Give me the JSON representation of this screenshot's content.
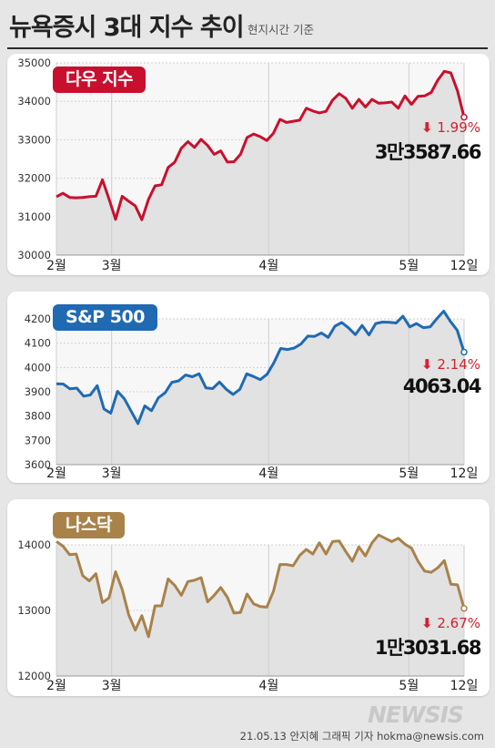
{
  "page": {
    "title": "뉴욕증시 3대 지수 추이",
    "subtitle": "현지시간 기준"
  },
  "footer": {
    "credit": "21.05.13 안지혜 그래픽 기자 hokma@newsis.com",
    "logo_text": "NEWSIS"
  },
  "chart_data": [
    {
      "type": "area",
      "title": "다우 지수",
      "color": "#c8102e",
      "badge_color": "#c8102e",
      "ylim": [
        30000,
        35000
      ],
      "yticks": [
        30000,
        31000,
        32000,
        33000,
        34000,
        35000
      ],
      "xticks": [
        {
          "label": "2월",
          "index": 0
        },
        {
          "label": "3월",
          "index": 13
        },
        {
          "label": "4월",
          "index": 50
        },
        {
          "label": "5월",
          "index": 83
        },
        {
          "label": "12일",
          "index": 96
        }
      ],
      "values": [
        31520,
        31610,
        31500,
        31490,
        31500,
        31520,
        31530,
        31960,
        31460,
        30930,
        31530,
        31400,
        31280,
        30920,
        31450,
        31800,
        31830,
        32280,
        32420,
        32780,
        32950,
        32800,
        33010,
        32850,
        32620,
        32710,
        32420,
        32430,
        32620,
        33060,
        33150,
        33080,
        32980,
        33170,
        33530,
        33450,
        33480,
        33510,
        33820,
        33750,
        33700,
        33740,
        34030,
        34200,
        34080,
        33820,
        34050,
        33850,
        34050,
        33950,
        33960,
        33980,
        33820,
        34140,
        33920,
        34130,
        34140,
        34230,
        34550,
        34780,
        34740,
        34270,
        33587.66
      ],
      "change": {
        "arrow": "⬇",
        "text": "1.99%"
      },
      "close_label": "3만3587.66"
    },
    {
      "type": "area",
      "title": "S&P 500",
      "color": "#1f6ab3",
      "badge_color": "#1f6ab3",
      "ylim": [
        3600,
        4200
      ],
      "yticks": [
        3600,
        3700,
        3800,
        3900,
        4000,
        4100,
        4200
      ],
      "xticks": [
        {
          "label": "2월",
          "index": 0
        },
        {
          "label": "3월",
          "index": 13
        },
        {
          "label": "4월",
          "index": 50
        },
        {
          "label": "5월",
          "index": 83
        },
        {
          "label": "12일",
          "index": 96
        }
      ],
      "values": [
        3933,
        3932,
        3912,
        3915,
        3882,
        3887,
        3925,
        3829,
        3812,
        3902,
        3871,
        3820,
        3769,
        3842,
        3822,
        3875,
        3896,
        3939,
        3945,
        3969,
        3962,
        3974,
        3916,
        3913,
        3940,
        3910,
        3889,
        3910,
        3974,
        3963,
        3950,
        3972,
        4019,
        4078,
        4074,
        4080,
        4097,
        4129,
        4128,
        4142,
        4124,
        4170,
        4185,
        4163,
        4135,
        4173,
        4134,
        4181,
        4187,
        4186,
        4183,
        4211,
        4167,
        4181,
        4164,
        4167,
        4201,
        4232,
        4189,
        4153,
        4063.04
      ],
      "change": {
        "arrow": "⬇",
        "text": "2.14%"
      },
      "close_label": "4063.04"
    },
    {
      "type": "area",
      "title": "나스닥",
      "color": "#a9824a",
      "badge_color": "#a9824a",
      "ylim": [
        12000,
        14000
      ],
      "yticks": [
        12000,
        13000,
        14000
      ],
      "xticks": [
        {
          "label": "2월",
          "index": 0
        },
        {
          "label": "3월",
          "index": 13
        },
        {
          "label": "4월",
          "index": 50
        },
        {
          "label": "5월",
          "index": 83
        },
        {
          "label": "12일",
          "index": 96
        }
      ],
      "values": [
        14050,
        13980,
        13850,
        13860,
        13530,
        13450,
        13560,
        13120,
        13190,
        13590,
        13320,
        12930,
        12700,
        12920,
        12600,
        13070,
        13070,
        13480,
        13380,
        13230,
        13440,
        13460,
        13500,
        13130,
        13230,
        13350,
        13200,
        12960,
        12970,
        13250,
        13100,
        13060,
        13050,
        13290,
        13700,
        13700,
        13680,
        13840,
        13930,
        13860,
        14030,
        13860,
        14050,
        14060,
        13900,
        13750,
        13970,
        13830,
        14030,
        14150,
        14100,
        14050,
        14100,
        14010,
        13950,
        13750,
        13600,
        13580,
        13650,
        13760,
        13400,
        13390,
        13031.68
      ],
      "change": {
        "arrow": "⬇",
        "text": "2.67%"
      },
      "close_label": "1만3031.68"
    }
  ]
}
